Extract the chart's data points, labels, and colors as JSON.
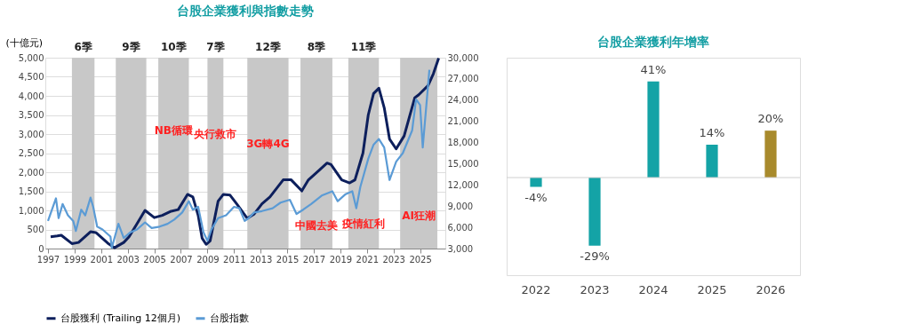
{
  "chart_data": [
    {
      "type": "line",
      "title": "台股企業獲利與指數走勢",
      "ylabel": "(十億元)",
      "xlim": [
        1996.8,
        2026.9
      ],
      "xticks": [
        1997,
        1999,
        2001,
        2003,
        2005,
        2007,
        2009,
        2011,
        2013,
        2015,
        2017,
        2019,
        2021,
        2023,
        2025
      ],
      "ylim": [
        0,
        5000
      ],
      "yticks": [
        0,
        500,
        {
          "value": 1000,
          "label": "1,000"
        },
        {
          "value": 1500,
          "label": "1,500"
        },
        {
          "value": 2000,
          "label": "2,000"
        },
        {
          "value": 2500,
          "label": "2,500"
        },
        {
          "value": 3000,
          "label": "3,000"
        },
        {
          "value": 3500,
          "label": "3,500"
        },
        {
          "value": 4000,
          "label": "4,000"
        },
        {
          "value": 4500,
          "label": "4,500"
        },
        {
          "value": 5000,
          "label": "5,000"
        }
      ],
      "y2lim": [
        3000,
        30000
      ],
      "y2ticks": [
        {
          "value": 3000,
          "label": "3,000"
        },
        {
          "value": 6000,
          "label": "6,000"
        },
        {
          "value": 9000,
          "label": "9,000"
        },
        {
          "value": 12000,
          "label": "12,000"
        },
        {
          "value": 15000,
          "label": "15,000"
        },
        {
          "value": 18000,
          "label": "18,000"
        },
        {
          "value": 21000,
          "label": "21,000"
        },
        {
          "value": 24000,
          "label": "24,000"
        },
        {
          "value": 27000,
          "label": "27,000"
        },
        {
          "value": 30000,
          "label": "30,000"
        }
      ],
      "grid": "y",
      "legend": "bottom",
      "line_style": "solid",
      "series": [
        {
          "name": "台股獲利 (Trailing 12個月)",
          "color": "#0d1f5c",
          "type": "line",
          "x": [
            1997.2,
            1997.7,
            1998.0,
            1998.8,
            1999.3,
            2000.2,
            2000.6,
            2001.5,
            2002.0,
            2002.7,
            2003.1,
            2003.7,
            2004.3,
            2005.0,
            2005.6,
            2006.2,
            2006.8,
            2007.5,
            2007.9,
            2008.3,
            2008.6,
            2008.9,
            2009.2,
            2009.8,
            2010.2,
            2010.7,
            2011.2,
            2012.0,
            2012.5,
            2013.1,
            2013.7,
            2014.7,
            2015.3,
            2016.1,
            2016.6,
            2017.4,
            2018.0,
            2018.3,
            2019.1,
            2019.7,
            2020.1,
            2020.7,
            2021.1,
            2021.5,
            2021.9,
            2022.3,
            2022.7,
            2023.2,
            2023.8,
            2024.6,
            2024.9,
            2025.6,
            2026.0,
            2026.4
          ],
          "values": [
            310,
            330,
            350,
            130,
            160,
            440,
            420,
            140,
            20,
            160,
            310,
            650,
            1000,
            810,
            870,
            970,
            1020,
            1420,
            1350,
            870,
            270,
            110,
            200,
            1240,
            1420,
            1400,
            1170,
            790,
            900,
            1170,
            1350,
            1800,
            1800,
            1510,
            1800,
            2050,
            2240,
            2200,
            1800,
            1720,
            1800,
            2500,
            3500,
            4060,
            4200,
            3690,
            2870,
            2610,
            2950,
            3950,
            4030,
            4270,
            4580,
            4990
          ]
        },
        {
          "name": "台股指數",
          "color": "#5b9bd5",
          "type": "line",
          "axis": "y2",
          "x": [
            1997.0,
            1997.3,
            1997.6,
            1997.8,
            1998.1,
            1998.5,
            1998.9,
            1999.1,
            1999.5,
            1999.8,
            2000.2,
            2000.4,
            2000.7,
            2001.1,
            2001.7,
            2001.8,
            2002.3,
            2002.7,
            2003.2,
            2003.7,
            2004.3,
            2004.8,
            2005.4,
            2006.0,
            2006.5,
            2007.1,
            2007.6,
            2007.9,
            2008.3,
            2008.7,
            2009.0,
            2009.3,
            2009.8,
            2010.4,
            2011.0,
            2011.4,
            2011.8,
            2012.1,
            2012.5,
            2013.1,
            2013.9,
            2014.5,
            2015.2,
            2015.7,
            2016.2,
            2016.8,
            2017.6,
            2018.4,
            2018.8,
            2019.4,
            2019.9,
            2020.2,
            2020.5,
            2021.1,
            2021.5,
            2021.9,
            2022.3,
            2022.7,
            2023.2,
            2023.7,
            2024.4,
            2024.7,
            2025.0,
            2025.2,
            2025.4,
            2025.7
          ],
          "values": [
            6900,
            8500,
            10100,
            7300,
            9300,
            7700,
            6900,
            5500,
            8500,
            7700,
            10200,
            8900,
            6100,
            5700,
            4700,
            3100,
            6500,
            4500,
            5300,
            5700,
            6700,
            5900,
            6100,
            6500,
            7100,
            8100,
            9700,
            8500,
            8900,
            5300,
            4100,
            5700,
            7300,
            7700,
            8900,
            8700,
            6900,
            7300,
            8100,
            8300,
            8700,
            9500,
            9900,
            7900,
            8500,
            9300,
            10500,
            11100,
            9700,
            10700,
            11100,
            8700,
            11700,
            15700,
            17700,
            18500,
            17300,
            12700,
            15300,
            16500,
            19700,
            24100,
            23300,
            17300,
            21700,
            28300
          ]
        }
      ],
      "bands": [
        {
          "axis": "x",
          "from": 1998.8,
          "to": 2000.5,
          "label": "6季",
          "color": "#c8c8c8"
        },
        {
          "axis": "x",
          "from": 2002.1,
          "to": 2004.4,
          "label": "9季",
          "color": "#c8c8c8"
        },
        {
          "axis": "x",
          "from": 2005.3,
          "to": 2007.6,
          "label": "10季",
          "color": "#c8c8c8"
        },
        {
          "axis": "x",
          "from": 2009.0,
          "to": 2010.2,
          "label": "7季",
          "color": "#c8c8c8"
        },
        {
          "axis": "x",
          "from": 2012.0,
          "to": 2015.1,
          "label": "12季",
          "color": "#c8c8c8"
        },
        {
          "axis": "x",
          "from": 2016.0,
          "to": 2018.4,
          "label": "8季",
          "color": "#c8c8c8"
        },
        {
          "axis": "x",
          "from": 2019.6,
          "to": 2021.9,
          "label": "11季",
          "color": "#c8c8c8"
        },
        {
          "axis": "x",
          "from": 2023.5,
          "to": 2026.3,
          "label": null,
          "color": "#c8c8c8"
        }
      ],
      "annotations": [
        "NB循環",
        "央行救市",
        "3G轉4G",
        "中國去美",
        "疫情紅利",
        "AI狂潮"
      ]
    },
    {
      "type": "bar",
      "title": "台股企業獲利年增率",
      "categories": [
        "2022",
        "2023",
        "2024",
        "2025",
        "2026"
      ],
      "values": [
        -4,
        -29,
        41,
        14,
        20
      ],
      "colors": [
        "#14a3a6",
        "#14a3a6",
        "#14a3a6",
        "#14a3a6",
        "#a88a2c"
      ],
      "value_labels": [
        "-4%",
        "-29%",
        "41%",
        "14%",
        "20%"
      ]
    }
  ]
}
